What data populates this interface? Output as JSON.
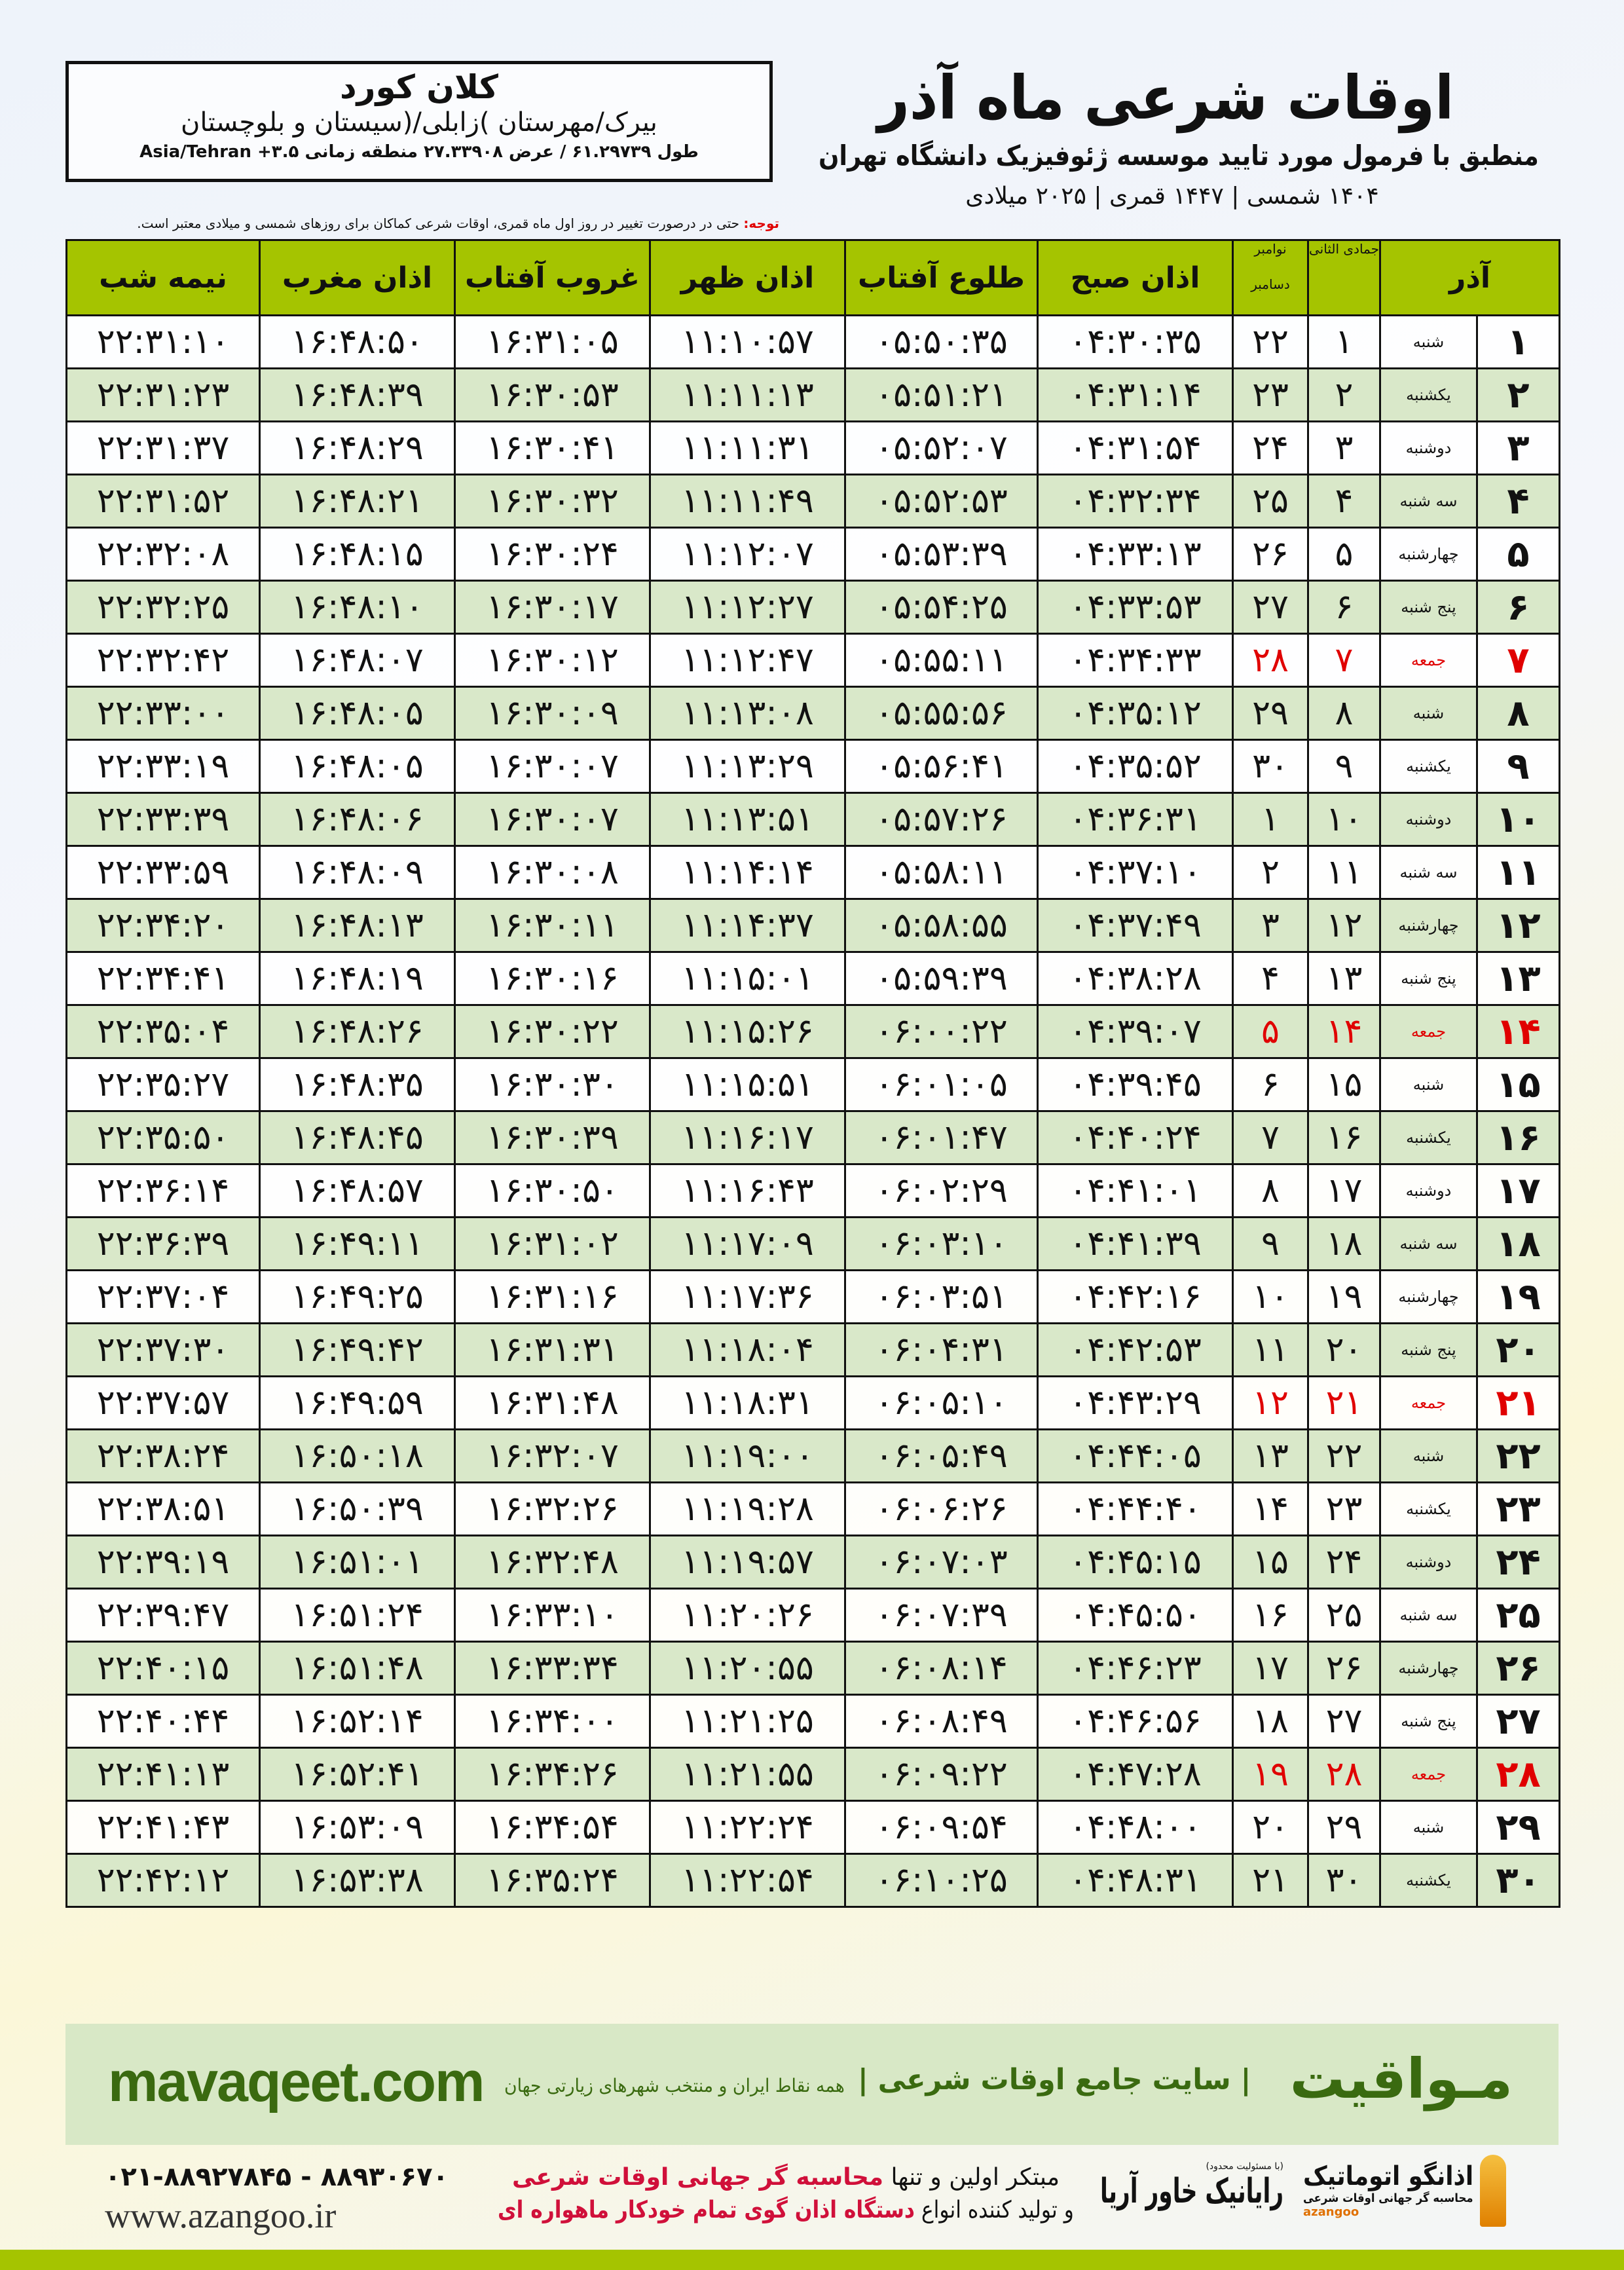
{
  "info": {
    "city": "کلان کورد",
    "region": "بیرک/مهرستان )زابلی/(سیستان و بلوچستان",
    "coords": "طول ۶۱.۲۹۷۳۹ / عرض ۲۷.۳۳۹۰۸ منطقه زمانی Asia/Tehran +۳.۵"
  },
  "header": {
    "title": "اوقات شرعی ماه آذر",
    "subtitle": "منطبق با فرمول مورد تایید موسسه ژئوفیزیک دانشگاه تهران",
    "dates": "۱۴۰۴ شمسی | ۱۴۴۷ قمری | ۲۰۲۵ میلادی",
    "note_label": "توجه:",
    "note": " حتی در درصورت تغییر در روز اول ماه قمری، اوقات شرعی کماکان برای روزهای شمسی و میلادی معتبر است."
  },
  "table": {
    "columns": {
      "azar": "آذر",
      "hijri": "جمادی الثانی",
      "greg_top": "نوامبر",
      "greg_bottom": "دسامبر",
      "fajr": "اذان صبح",
      "sunrise": "طلوع آفتاب",
      "dhuhr": "اذان ظهر",
      "sunset": "غروب آفتاب",
      "maghrib": "اذان مغرب",
      "midnight": "نیمه شب"
    },
    "friday_color": "#e00000",
    "rows": [
      [
        "۱",
        "شنبه",
        "۱",
        "۲۲",
        "۰۴:۳۰:۳۵",
        "۰۵:۵۰:۳۵",
        "۱۱:۱۰:۵۷",
        "۱۶:۳۱:۰۵",
        "۱۶:۴۸:۵۰",
        "۲۲:۳۱:۱۰"
      ],
      [
        "۲",
        "یکشنبه",
        "۲",
        "۲۳",
        "۰۴:۳۱:۱۴",
        "۰۵:۵۱:۲۱",
        "۱۱:۱۱:۱۳",
        "۱۶:۳۰:۵۳",
        "۱۶:۴۸:۳۹",
        "۲۲:۳۱:۲۳"
      ],
      [
        "۳",
        "دوشنبه",
        "۳",
        "۲۴",
        "۰۴:۳۱:۵۴",
        "۰۵:۵۲:۰۷",
        "۱۱:۱۱:۳۱",
        "۱۶:۳۰:۴۱",
        "۱۶:۴۸:۲۹",
        "۲۲:۳۱:۳۷"
      ],
      [
        "۴",
        "سه شنبه",
        "۴",
        "۲۵",
        "۰۴:۳۲:۳۴",
        "۰۵:۵۲:۵۳",
        "۱۱:۱۱:۴۹",
        "۱۶:۳۰:۳۲",
        "۱۶:۴۸:۲۱",
        "۲۲:۳۱:۵۲"
      ],
      [
        "۵",
        "چهارشنبه",
        "۵",
        "۲۶",
        "۰۴:۳۳:۱۳",
        "۰۵:۵۳:۳۹",
        "۱۱:۱۲:۰۷",
        "۱۶:۳۰:۲۴",
        "۱۶:۴۸:۱۵",
        "۲۲:۳۲:۰۸"
      ],
      [
        "۶",
        "پنج شنبه",
        "۶",
        "۲۷",
        "۰۴:۳۳:۵۳",
        "۰۵:۵۴:۲۵",
        "۱۱:۱۲:۲۷",
        "۱۶:۳۰:۱۷",
        "۱۶:۴۸:۱۰",
        "۲۲:۳۲:۲۵"
      ],
      [
        "۷",
        "جمعه",
        "۷",
        "۲۸",
        "۰۴:۳۴:۳۳",
        "۰۵:۵۵:۱۱",
        "۱۱:۱۲:۴۷",
        "۱۶:۳۰:۱۲",
        "۱۶:۴۸:۰۷",
        "۲۲:۳۲:۴۲"
      ],
      [
        "۸",
        "شنبه",
        "۸",
        "۲۹",
        "۰۴:۳۵:۱۲",
        "۰۵:۵۵:۵۶",
        "۱۱:۱۳:۰۸",
        "۱۶:۳۰:۰۹",
        "۱۶:۴۸:۰۵",
        "۲۲:۳۳:۰۰"
      ],
      [
        "۹",
        "یکشنبه",
        "۹",
        "۳۰",
        "۰۴:۳۵:۵۲",
        "۰۵:۵۶:۴۱",
        "۱۱:۱۳:۲۹",
        "۱۶:۳۰:۰۷",
        "۱۶:۴۸:۰۵",
        "۲۲:۳۳:۱۹"
      ],
      [
        "۱۰",
        "دوشنبه",
        "۱۰",
        "۱",
        "۰۴:۳۶:۳۱",
        "۰۵:۵۷:۲۶",
        "۱۱:۱۳:۵۱",
        "۱۶:۳۰:۰۷",
        "۱۶:۴۸:۰۶",
        "۲۲:۳۳:۳۹"
      ],
      [
        "۱۱",
        "سه شنبه",
        "۱۱",
        "۲",
        "۰۴:۳۷:۱۰",
        "۰۵:۵۸:۱۱",
        "۱۱:۱۴:۱۴",
        "۱۶:۳۰:۰۸",
        "۱۶:۴۸:۰۹",
        "۲۲:۳۳:۵۹"
      ],
      [
        "۱۲",
        "چهارشنبه",
        "۱۲",
        "۳",
        "۰۴:۳۷:۴۹",
        "۰۵:۵۸:۵۵",
        "۱۱:۱۴:۳۷",
        "۱۶:۳۰:۱۱",
        "۱۶:۴۸:۱۳",
        "۲۲:۳۴:۲۰"
      ],
      [
        "۱۳",
        "پنج شنبه",
        "۱۳",
        "۴",
        "۰۴:۳۸:۲۸",
        "۰۵:۵۹:۳۹",
        "۱۱:۱۵:۰۱",
        "۱۶:۳۰:۱۶",
        "۱۶:۴۸:۱۹",
        "۲۲:۳۴:۴۱"
      ],
      [
        "۱۴",
        "جمعه",
        "۱۴",
        "۵",
        "۰۴:۳۹:۰۷",
        "۰۶:۰۰:۲۲",
        "۱۱:۱۵:۲۶",
        "۱۶:۳۰:۲۲",
        "۱۶:۴۸:۲۶",
        "۲۲:۳۵:۰۴"
      ],
      [
        "۱۵",
        "شنبه",
        "۱۵",
        "۶",
        "۰۴:۳۹:۴۵",
        "۰۶:۰۱:۰۵",
        "۱۱:۱۵:۵۱",
        "۱۶:۳۰:۳۰",
        "۱۶:۴۸:۳۵",
        "۲۲:۳۵:۲۷"
      ],
      [
        "۱۶",
        "یکشنبه",
        "۱۶",
        "۷",
        "۰۴:۴۰:۲۴",
        "۰۶:۰۱:۴۷",
        "۱۱:۱۶:۱۷",
        "۱۶:۳۰:۳۹",
        "۱۶:۴۸:۴۵",
        "۲۲:۳۵:۵۰"
      ],
      [
        "۱۷",
        "دوشنبه",
        "۱۷",
        "۸",
        "۰۴:۴۱:۰۱",
        "۰۶:۰۲:۲۹",
        "۱۱:۱۶:۴۳",
        "۱۶:۳۰:۵۰",
        "۱۶:۴۸:۵۷",
        "۲۲:۳۶:۱۴"
      ],
      [
        "۱۸",
        "سه شنبه",
        "۱۸",
        "۹",
        "۰۴:۴۱:۳۹",
        "۰۶:۰۳:۱۰",
        "۱۱:۱۷:۰۹",
        "۱۶:۳۱:۰۲",
        "۱۶:۴۹:۱۱",
        "۲۲:۳۶:۳۹"
      ],
      [
        "۱۹",
        "چهارشنبه",
        "۱۹",
        "۱۰",
        "۰۴:۴۲:۱۶",
        "۰۶:۰۳:۵۱",
        "۱۱:۱۷:۳۶",
        "۱۶:۳۱:۱۶",
        "۱۶:۴۹:۲۵",
        "۲۲:۳۷:۰۴"
      ],
      [
        "۲۰",
        "پنج شنبه",
        "۲۰",
        "۱۱",
        "۰۴:۴۲:۵۳",
        "۰۶:۰۴:۳۱",
        "۱۱:۱۸:۰۴",
        "۱۶:۳۱:۳۱",
        "۱۶:۴۹:۴۲",
        "۲۲:۳۷:۳۰"
      ],
      [
        "۲۱",
        "جمعه",
        "۲۱",
        "۱۲",
        "۰۴:۴۳:۲۹",
        "۰۶:۰۵:۱۰",
        "۱۱:۱۸:۳۱",
        "۱۶:۳۱:۴۸",
        "۱۶:۴۹:۵۹",
        "۲۲:۳۷:۵۷"
      ],
      [
        "۲۲",
        "شنبه",
        "۲۲",
        "۱۳",
        "۰۴:۴۴:۰۵",
        "۰۶:۰۵:۴۹",
        "۱۱:۱۹:۰۰",
        "۱۶:۳۲:۰۷",
        "۱۶:۵۰:۱۸",
        "۲۲:۳۸:۲۴"
      ],
      [
        "۲۳",
        "یکشنبه",
        "۲۳",
        "۱۴",
        "۰۴:۴۴:۴۰",
        "۰۶:۰۶:۲۶",
        "۱۱:۱۹:۲۸",
        "۱۶:۳۲:۲۶",
        "۱۶:۵۰:۳۹",
        "۲۲:۳۸:۵۱"
      ],
      [
        "۲۴",
        "دوشنبه",
        "۲۴",
        "۱۵",
        "۰۴:۴۵:۱۵",
        "۰۶:۰۷:۰۳",
        "۱۱:۱۹:۵۷",
        "۱۶:۳۲:۴۸",
        "۱۶:۵۱:۰۱",
        "۲۲:۳۹:۱۹"
      ],
      [
        "۲۵",
        "سه شنبه",
        "۲۵",
        "۱۶",
        "۰۴:۴۵:۵۰",
        "۰۶:۰۷:۳۹",
        "۱۱:۲۰:۲۶",
        "۱۶:۳۳:۱۰",
        "۱۶:۵۱:۲۴",
        "۲۲:۳۹:۴۷"
      ],
      [
        "۲۶",
        "چهارشنبه",
        "۲۶",
        "۱۷",
        "۰۴:۴۶:۲۳",
        "۰۶:۰۸:۱۴",
        "۱۱:۲۰:۵۵",
        "۱۶:۳۳:۳۴",
        "۱۶:۵۱:۴۸",
        "۲۲:۴۰:۱۵"
      ],
      [
        "۲۷",
        "پنج شنبه",
        "۲۷",
        "۱۸",
        "۰۴:۴۶:۵۶",
        "۰۶:۰۸:۴۹",
        "۱۱:۲۱:۲۵",
        "۱۶:۳۴:۰۰",
        "۱۶:۵۲:۱۴",
        "۲۲:۴۰:۴۴"
      ],
      [
        "۲۸",
        "جمعه",
        "۲۸",
        "۱۹",
        "۰۴:۴۷:۲۸",
        "۰۶:۰۹:۲۲",
        "۱۱:۲۱:۵۵",
        "۱۶:۳۴:۲۶",
        "۱۶:۵۲:۴۱",
        "۲۲:۴۱:۱۳"
      ],
      [
        "۲۹",
        "شنبه",
        "۲۹",
        "۲۰",
        "۰۴:۴۸:۰۰",
        "۰۶:۰۹:۵۴",
        "۱۱:۲۲:۲۴",
        "۱۶:۳۴:۵۴",
        "۱۶:۵۳:۰۹",
        "۲۲:۴۱:۴۳"
      ],
      [
        "۳۰",
        "یکشنبه",
        "۳۰",
        "۲۱",
        "۰۴:۴۸:۳۱",
        "۰۶:۱۰:۲۵",
        "۱۱:۲۲:۵۴",
        "۱۶:۳۵:۲۴",
        "۱۶:۵۳:۳۸",
        "۲۲:۴۲:۱۲"
      ]
    ]
  },
  "footer": {
    "brand": "مـواقیت",
    "slogan": "| سایت جامع اوقات شرعی |",
    "slogan_sub": "همه نقاط ایران و منتخب شهرهای زیارتی جهان",
    "site": "mavaqeet.com",
    "phones": "۰۲۱-۸۸۹۲۷۸۴۵ - ۸۸۹۳۰۶۷۰",
    "web": "www.azangoo.ir",
    "promo_1a": "مبتکر اولین و تنها ",
    "promo_1b": "محاسبه گر جهانی اوقات شرعی",
    "promo_2a": "و تولید کننده انواع ",
    "promo_2b": "دستگاه اذان گوی تمام خودکار ماهواره ای",
    "logo_ray_small": "(با مسئولیت محدود)",
    "logo_ray": "رایانیک خاور آریا",
    "logo_azan": "اذانگو اتوماتیک",
    "logo_azan_tag": "محاسبه گر جهانی اوقات شرعی",
    "logo_azan_en": "azangoo",
    "accent_color": "#a5c400",
    "brand_color": "#3a6a10"
  }
}
